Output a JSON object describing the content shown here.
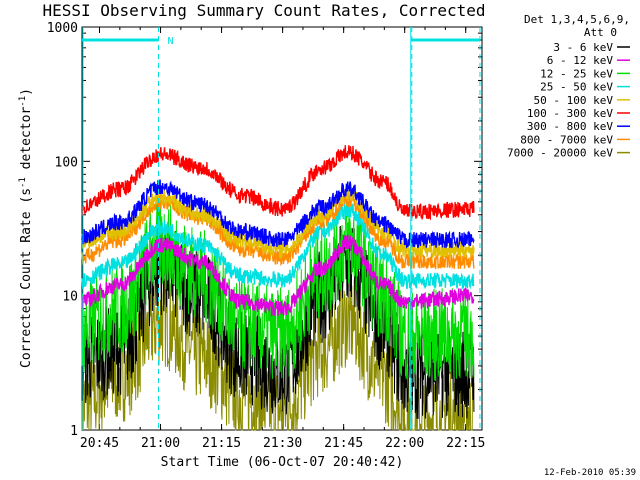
{
  "chart_data": {
    "type": "line",
    "title": "HESSI Observing Summary Count Rates, Corrected",
    "xlabel": "Start Time (06-Oct-07 20:40:42)",
    "ylabel_main": "Corrected Count Rate (s",
    "ylabel_exp1": "-1",
    "ylabel_mid": " detector",
    "ylabel_exp2": "-1",
    "ylabel_end": ")",
    "yscale": "log",
    "ylim": [
      1,
      1000
    ],
    "xlim": [
      "20:40:42",
      "22:19:00"
    ],
    "xticks": [
      "20:45",
      "21:00",
      "21:15",
      "21:30",
      "21:45",
      "22:00",
      "22:15"
    ],
    "yticks": [
      "1",
      "10",
      "100",
      "1000"
    ],
    "legend_header": [
      "Det 1,3,4,5,6,9,",
      "Att 0"
    ],
    "legend_placement": "right",
    "flag_label": "N",
    "footer_date": "12-Feb-2010 05:39",
    "series": [
      {
        "name": "3 - 6 keV",
        "color": "#000000",
        "points": [
          [
            "20:40",
            3.3
          ],
          [
            "20:50",
            4
          ],
          [
            "21:00",
            16
          ],
          [
            "21:10",
            10
          ],
          [
            "21:20",
            3.5
          ],
          [
            "21:30",
            2.7
          ],
          [
            "21:40",
            10
          ],
          [
            "21:46",
            17
          ],
          [
            "21:55",
            6
          ],
          [
            "22:00",
            2.7
          ],
          [
            "22:17",
            2.7
          ]
        ]
      },
      {
        "name": "6 - 12 keV",
        "color": "#e000e0",
        "points": [
          [
            "20:40",
            9
          ],
          [
            "20:50",
            12
          ],
          [
            "21:00",
            24
          ],
          [
            "21:10",
            18
          ],
          [
            "21:20",
            9
          ],
          [
            "21:30",
            8
          ],
          [
            "21:40",
            16
          ],
          [
            "21:46",
            25
          ],
          [
            "21:55",
            12
          ],
          [
            "22:00",
            9
          ],
          [
            "22:17",
            10
          ]
        ]
      },
      {
        "name": "12 - 25 keV",
        "color": "#00dd00",
        "points": [
          [
            "20:40",
            5.5
          ],
          [
            "20:50",
            8
          ],
          [
            "21:00",
            24
          ],
          [
            "21:10",
            14
          ],
          [
            "21:20",
            6
          ],
          [
            "21:30",
            5.2
          ],
          [
            "21:40",
            15
          ],
          [
            "21:46",
            25
          ],
          [
            "21:55",
            10
          ],
          [
            "22:00",
            5
          ],
          [
            "22:17",
            5.2
          ]
        ]
      },
      {
        "name": "25 - 50 keV",
        "color": "#00e0e0",
        "points": [
          [
            "20:40",
            13
          ],
          [
            "20:50",
            17
          ],
          [
            "21:00",
            32
          ],
          [
            "21:10",
            24
          ],
          [
            "21:20",
            14
          ],
          [
            "21:30",
            13
          ],
          [
            "21:40",
            30
          ],
          [
            "21:46",
            44
          ],
          [
            "21:55",
            20
          ],
          [
            "22:00",
            13
          ],
          [
            "22:17",
            13
          ]
        ]
      },
      {
        "name": "50 - 100 keV",
        "color": "#e0c000",
        "points": [
          [
            "20:40",
            25
          ],
          [
            "20:50",
            30
          ],
          [
            "21:00",
            54
          ],
          [
            "21:10",
            40
          ],
          [
            "21:20",
            26
          ],
          [
            "21:30",
            22
          ],
          [
            "21:40",
            40
          ],
          [
            "21:46",
            58
          ],
          [
            "21:55",
            30
          ],
          [
            "22:00",
            22
          ],
          [
            "22:17",
            22
          ]
        ]
      },
      {
        "name": "100 - 300 keV",
        "color": "#ff0000",
        "points": [
          [
            "20:40",
            45
          ],
          [
            "20:50",
            62
          ],
          [
            "21:00",
            113
          ],
          [
            "21:10",
            90
          ],
          [
            "21:20",
            56
          ],
          [
            "21:30",
            44
          ],
          [
            "21:40",
            90
          ],
          [
            "21:46",
            117
          ],
          [
            "21:55",
            70
          ],
          [
            "22:00",
            42
          ],
          [
            "22:17",
            44
          ]
        ]
      },
      {
        "name": "300 - 800 keV",
        "color": "#0000ff",
        "points": [
          [
            "20:40",
            27
          ],
          [
            "20:50",
            35
          ],
          [
            "21:00",
            65
          ],
          [
            "21:10",
            48
          ],
          [
            "21:20",
            30
          ],
          [
            "21:30",
            26
          ],
          [
            "21:40",
            46
          ],
          [
            "21:46",
            62
          ],
          [
            "21:55",
            34
          ],
          [
            "22:00",
            26
          ],
          [
            "22:17",
            26
          ]
        ]
      },
      {
        "name": "800 - 7000 keV",
        "color": "#ff8c00",
        "points": [
          [
            "20:40",
            19
          ],
          [
            "20:50",
            26
          ],
          [
            "21:00",
            50
          ],
          [
            "21:10",
            38
          ],
          [
            "21:20",
            22
          ],
          [
            "21:30",
            19
          ],
          [
            "21:40",
            36
          ],
          [
            "21:46",
            52
          ],
          [
            "21:55",
            26
          ],
          [
            "22:00",
            18
          ],
          [
            "22:17",
            18
          ]
        ]
      },
      {
        "name": "7000 - 20000 keV",
        "color": "#8b8b00",
        "points": [
          [
            "20:40",
            1.5
          ],
          [
            "20:50",
            2.5
          ],
          [
            "21:00",
            6.5
          ],
          [
            "21:10",
            3.5
          ],
          [
            "21:20",
            1.8
          ],
          [
            "21:30",
            1.4
          ],
          [
            "21:40",
            4
          ],
          [
            "21:46",
            6.5
          ],
          [
            "21:55",
            2.5
          ],
          [
            "22:00",
            1.2
          ],
          [
            "22:17",
            1.3
          ]
        ]
      }
    ],
    "flag_intervals": [
      [
        "20:40:42",
        "20:59:30"
      ],
      [
        "22:01:30",
        "22:18:30"
      ]
    ],
    "flag_level": 800,
    "vertical_markers": [
      {
        "time": "20:59:30",
        "style": "dashed"
      },
      {
        "time": "22:01:30",
        "style": "solid"
      },
      {
        "time": "22:01:45",
        "style": "dashed"
      },
      {
        "time": "22:18:30",
        "style": "dashed"
      }
    ]
  }
}
